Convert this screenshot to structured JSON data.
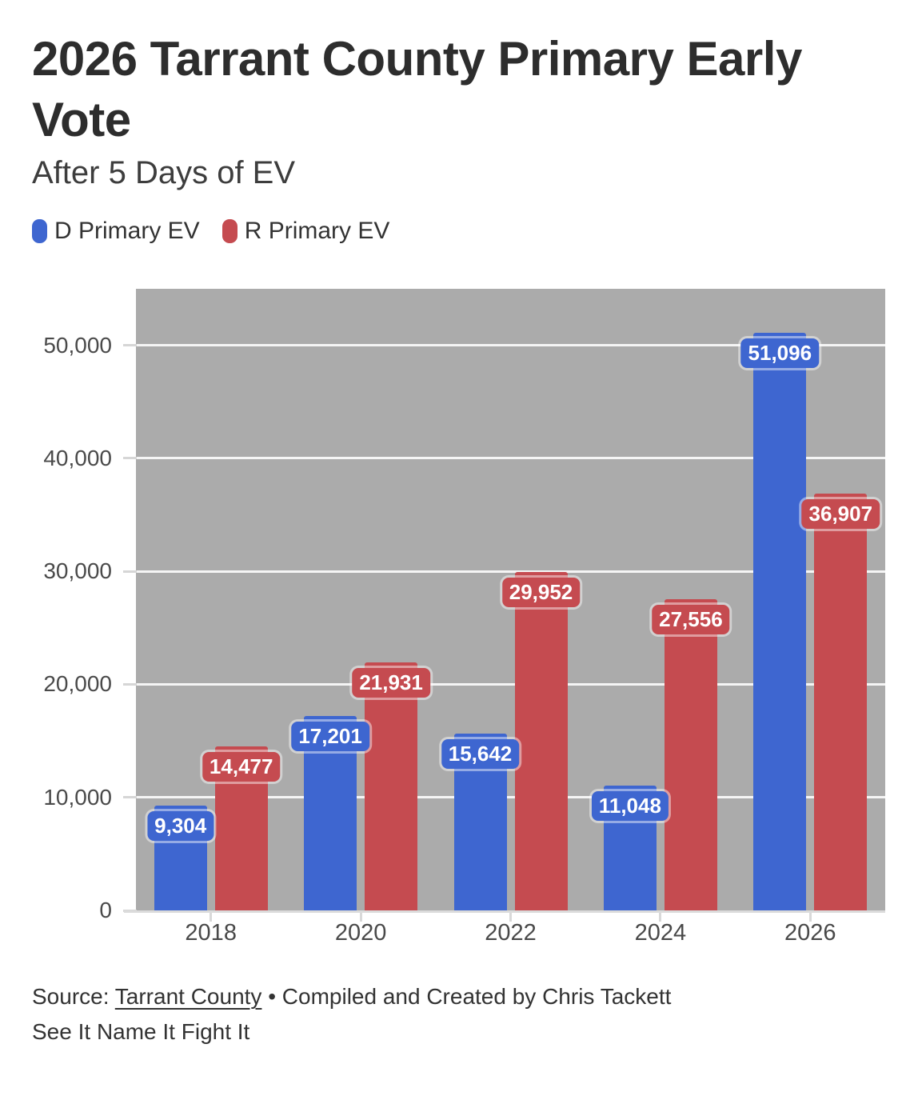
{
  "header": {
    "title": "2026 Tarrant County Primary Early Vote",
    "subtitle": "After 5 Days of EV"
  },
  "chart_data": {
    "type": "bar",
    "categories": [
      "2018",
      "2020",
      "2022",
      "2024",
      "2026"
    ],
    "series": [
      {
        "name": "D Primary EV",
        "color": "#3e66d0",
        "values": [
          9304,
          17201,
          15642,
          11048,
          51096
        ]
      },
      {
        "name": "R Primary EV",
        "color": "#c54b50",
        "values": [
          14477,
          21931,
          29952,
          27556,
          36907
        ]
      }
    ],
    "title": "2026 Tarrant County Primary Early Vote",
    "subtitle": "After 5 Days of EV",
    "xlabel": "",
    "ylabel": "",
    "ylim": [
      0,
      55000
    ],
    "yticks": [
      0,
      10000,
      20000,
      30000,
      40000,
      50000
    ],
    "grid": true,
    "value_labels": true,
    "plot_background": "#ababab",
    "gridline_color": "#f5f5f5",
    "legend_position": "top-left"
  },
  "footer": {
    "source_prefix": "Source: ",
    "source_link": "Tarrant County",
    "source_suffix": " • Compiled and Created by Chris Tackett",
    "tagline": "See It Name It Fight It"
  }
}
